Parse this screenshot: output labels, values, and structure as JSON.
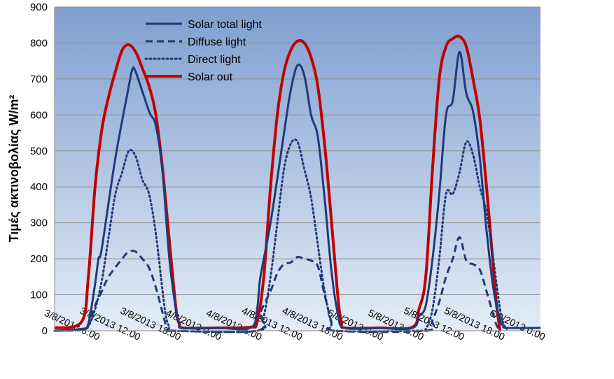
{
  "chart_data": {
    "type": "line",
    "title": "",
    "xlabel": "",
    "ylabel": "Τιμές ακτινοβολίας W/m²",
    "ylim": [
      0,
      900
    ],
    "yticks": [
      "0",
      "100",
      "200",
      "300",
      "400",
      "500",
      "600",
      "700",
      "800",
      "900"
    ],
    "xlim": [
      "3/8/2013 0:00",
      "6/8/2013 0:00"
    ],
    "xticks": [
      "3/8/2013 6:00",
      "3/8/2013 12:00",
      "3/8/2013 18:00",
      "4/8/2013 0:00",
      "4/8/2013 6:00",
      "4/8/2013 12:00",
      "4/8/2013 18:00",
      "5/8/2013 0:00",
      "5/8/2013 6:00",
      "5/8/2013 12:00",
      "5/8/2013 18:00",
      "6/8/2013 0:00"
    ],
    "grid": true,
    "legend_position": "top-left",
    "background_gradient": [
      "#7f9fd0",
      "#e4ecf6"
    ],
    "series": [
      {
        "name": "Solar total light",
        "color": "#1f3a7a",
        "style": "solid",
        "x": [
          "3/8/2013 0:00",
          "3/8/2013 4:00",
          "3/8/2013 5:00",
          "3/8/2013 6:00",
          "3/8/2013 6:30",
          "3/8/2013 7:00",
          "3/8/2013 9:00",
          "3/8/2013 11:00",
          "3/8/2013 11:30",
          "3/8/2013 12:00",
          "3/8/2013 14:00",
          "3/8/2013 15:00",
          "3/8/2013 16:00",
          "3/8/2013 17:00",
          "3/8/2013 18:00",
          "3/8/2013 18:30",
          "3/8/2013 19:00",
          "4/8/2013 0:00",
          "4/8/2013 5:00",
          "4/8/2013 6:00",
          "4/8/2013 6:30",
          "4/8/2013 8:00",
          "4/8/2013 10:00",
          "4/8/2013 11:00",
          "4/8/2013 12:00",
          "4/8/2013 13:00",
          "4/8/2013 14:00",
          "4/8/2013 15:00",
          "4/8/2013 16:00",
          "4/8/2013 17:00",
          "4/8/2013 18:00",
          "4/8/2013 19:00",
          "5/8/2013 0:00",
          "5/8/2013 5:00",
          "5/8/2013 6:00",
          "5/8/2013 7:00",
          "5/8/2013 8:00",
          "5/8/2013 9:00",
          "5/8/2013 10:00",
          "5/8/2013 11:00",
          "5/8/2013 12:00",
          "5/8/2013 13:00",
          "5/8/2013 14:00",
          "5/8/2013 15:00",
          "5/8/2013 16:00",
          "5/8/2013 17:00",
          "5/8/2013 18:00",
          "5/8/2013 18:30",
          "5/8/2013 19:00",
          "6/8/2013 0:00"
        ],
        "y": [
          0,
          5,
          20,
          130,
          200,
          230,
          480,
          680,
          725,
          720,
          610,
          570,
          440,
          200,
          55,
          15,
          8,
          8,
          8,
          60,
          150,
          300,
          550,
          670,
          738,
          710,
          600,
          540,
          370,
          170,
          45,
          8,
          8,
          8,
          40,
          70,
          200,
          380,
          600,
          640,
          775,
          660,
          610,
          480,
          280,
          120,
          30,
          15,
          8,
          8
        ]
      },
      {
        "name": "Diffuse light",
        "color": "#1f3a7a",
        "style": "dash",
        "x": [
          "3/8/2013 0:00",
          "3/8/2013 4:00",
          "3/8/2013 5:00",
          "3/8/2013 6:00",
          "3/8/2013 7:00",
          "3/8/2013 8:00",
          "3/8/2013 10:00",
          "3/8/2013 11:00",
          "3/8/2013 12:00",
          "3/8/2013 13:00",
          "3/8/2013 14:00",
          "3/8/2013 15:00",
          "3/8/2013 16:00",
          "3/8/2013 16:30",
          "3/8/2013 17:00",
          "3/8/2013 17:30",
          "4/8/2013 6:00",
          "4/8/2013 6:30",
          "4/8/2013 8:00",
          "4/8/2013 9:00",
          "4/8/2013 10:00",
          "4/8/2013 11:00",
          "4/8/2013 12:00",
          "4/8/2013 13:00",
          "4/8/2013 14:00",
          "4/8/2013 15:00",
          "4/8/2013 16:00",
          "4/8/2013 17:00",
          "4/8/2013 17:30",
          "5/8/2013 7:00",
          "5/8/2013 8:00",
          "5/8/2013 9:00",
          "5/8/2013 10:00",
          "5/8/2013 11:00",
          "5/8/2013 12:00",
          "5/8/2013 13:00",
          "5/8/2013 14:00",
          "5/8/2013 15:00",
          "5/8/2013 16:00",
          "5/8/2013 17:00",
          "5/8/2013 17:30",
          "5/8/2013 18:00"
        ],
        "y": [
          0,
          2,
          15,
          70,
          110,
          150,
          200,
          220,
          220,
          200,
          175,
          120,
          50,
          15,
          0,
          0,
          0,
          50,
          110,
          160,
          185,
          190,
          205,
          200,
          195,
          180,
          100,
          25,
          0,
          0,
          30,
          80,
          150,
          200,
          260,
          195,
          185,
          170,
          110,
          45,
          15,
          0
        ]
      },
      {
        "name": "Direct light",
        "color": "#1f3a7a",
        "style": "dot",
        "x": [
          "3/8/2013 0:00",
          "3/8/2013 4:00",
          "3/8/2013 5:00",
          "3/8/2013 6:00",
          "3/8/2013 7:00",
          "3/8/2013 8:00",
          "3/8/2013 9:00",
          "3/8/2013 10:00",
          "3/8/2013 11:00",
          "3/8/2013 12:00",
          "3/8/2013 13:00",
          "3/8/2013 14:00",
          "3/8/2013 15:00",
          "3/8/2013 16:00",
          "3/8/2013 16:30",
          "3/8/2013 17:00",
          "3/8/2013 17:30",
          "4/8/2013 6:00",
          "4/8/2013 7:00",
          "4/8/2013 8:00",
          "4/8/2013 9:00",
          "4/8/2013 10:00",
          "4/8/2013 11:00",
          "4/8/2013 12:00",
          "4/8/2013 13:00",
          "4/8/2013 14:00",
          "4/8/2013 15:00",
          "4/8/2013 16:00",
          "4/8/2013 17:00",
          "4/8/2013 17:30",
          "5/8/2013 6:00",
          "5/8/2013 7:00",
          "5/8/2013 8:00",
          "5/8/2013 9:00",
          "5/8/2013 10:00",
          "5/8/2013 11:00",
          "5/8/2013 12:00",
          "5/8/2013 13:00",
          "5/8/2013 14:00",
          "5/8/2013 15:00",
          "5/8/2013 16:00",
          "5/8/2013 17:00",
          "5/8/2013 18:00",
          "5/8/2013 18:30",
          "5/8/2013 19:00"
        ],
        "y": [
          0,
          2,
          12,
          60,
          140,
          260,
          380,
          440,
          500,
          485,
          420,
          380,
          270,
          110,
          40,
          10,
          0,
          0,
          40,
          150,
          300,
          450,
          520,
          525,
          450,
          370,
          240,
          110,
          20,
          0,
          0,
          5,
          60,
          200,
          380,
          380,
          440,
          525,
          490,
          400,
          330,
          200,
          60,
          20,
          5
        ]
      },
      {
        "name": "Solar out",
        "color": "#c00000",
        "style": "solid",
        "x": [
          "3/8/2013 0:00",
          "3/8/2013 4:00",
          "3/8/2013 5:00",
          "3/8/2013 6:00",
          "3/8/2013 7:00",
          "3/8/2013 8:00",
          "3/8/2013 9:00",
          "3/8/2013 10:00",
          "3/8/2013 11:00",
          "3/8/2013 12:00",
          "3/8/2013 13:00",
          "3/8/2013 14:00",
          "3/8/2013 15:00",
          "3/8/2013 16:00",
          "3/8/2013 17:00",
          "3/8/2013 18:00",
          "3/8/2013 18:30",
          "3/8/2013 19:00",
          "4/8/2013 0:00",
          "4/8/2013 5:00",
          "4/8/2013 6:00",
          "4/8/2013 7:00",
          "4/8/2013 8:00",
          "4/8/2013 9:00",
          "4/8/2013 10:00",
          "4/8/2013 11:00",
          "4/8/2013 12:00",
          "4/8/2013 13:00",
          "4/8/2013 14:00",
          "4/8/2013 15:00",
          "4/8/2013 16:00",
          "4/8/2013 17:00",
          "4/8/2013 18:00",
          "4/8/2013 18:30",
          "4/8/2013 19:00",
          "5/8/2013 0:00",
          "5/8/2013 5:00",
          "5/8/2013 6:00",
          "5/8/2013 7:00",
          "5/8/2013 8:00",
          "5/8/2013 9:00",
          "5/8/2013 10:00",
          "5/8/2013 11:00",
          "5/8/2013 12:00",
          "5/8/2013 13:00",
          "5/8/2013 14:00",
          "5/8/2013 15:00",
          "5/8/2013 16:00",
          "5/8/2013 17:00",
          "5/8/2013 17:30",
          "5/8/2013 18:00"
        ],
        "y": [
          8,
          25,
          150,
          400,
          560,
          650,
          720,
          780,
          795,
          775,
          730,
          680,
          600,
          450,
          250,
          60,
          20,
          8,
          8,
          10,
          25,
          150,
          400,
          600,
          720,
          780,
          805,
          800,
          760,
          680,
          520,
          310,
          90,
          25,
          8,
          8,
          10,
          60,
          150,
          450,
          700,
          790,
          812,
          818,
          790,
          700,
          590,
          400,
          180,
          70,
          0
        ]
      }
    ]
  }
}
